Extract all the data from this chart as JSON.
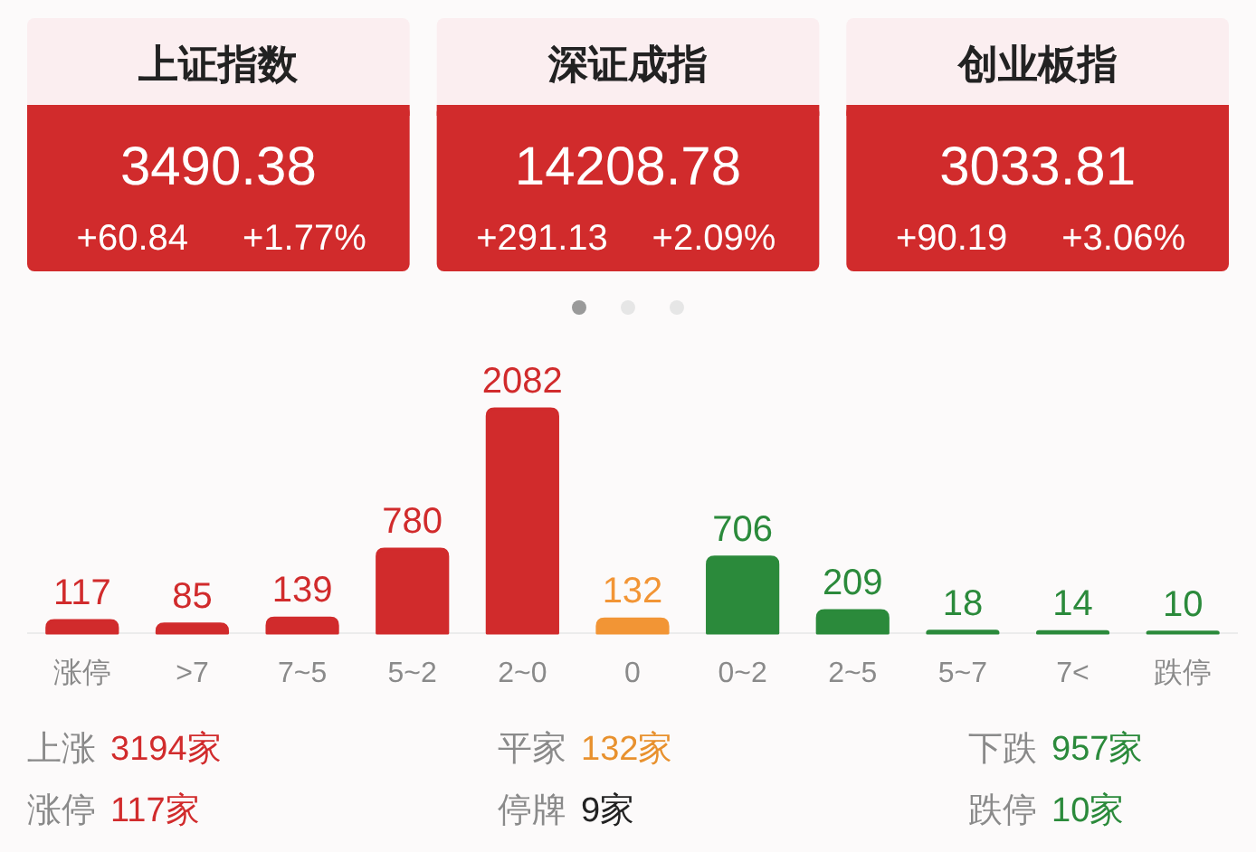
{
  "chart_data": [
    {
      "type": "other",
      "title": "上证指数",
      "annotations": [
        "3490.38",
        "+60.84",
        "+1.77%"
      ]
    },
    {
      "type": "other",
      "title": "深证成指",
      "annotations": [
        "14208.78",
        "+291.13",
        "+2.09%"
      ]
    },
    {
      "type": "other",
      "title": "创业板指",
      "annotations": [
        "3033.81",
        "+90.19",
        "+3.06%"
      ]
    },
    {
      "type": "bar",
      "categories": [
        "涨停",
        ">7",
        "7~5",
        "5~2",
        "2~0",
        "0",
        "0~2",
        "2~5",
        "5~7",
        "7<",
        "跌停"
      ],
      "values": [
        117,
        85,
        139,
        780,
        2082,
        132,
        706,
        209,
        18,
        14,
        10
      ],
      "colors": [
        "#d12b2c",
        "#d12b2c",
        "#d12b2c",
        "#d12b2c",
        "#d12b2c",
        "#f29535",
        "#2b8a3b",
        "#2b8a3b",
        "#2b8a3b",
        "#2b8a3b",
        "#2b8a3b"
      ],
      "data_labels": true
    },
    {
      "type": "other",
      "annotations": [
        "上涨",
        "3194家",
        "平家",
        "132家",
        "下跌",
        "957家",
        "涨停",
        "117家",
        "停牌",
        "9家",
        "跌停",
        "10家"
      ]
    }
  ]
}
